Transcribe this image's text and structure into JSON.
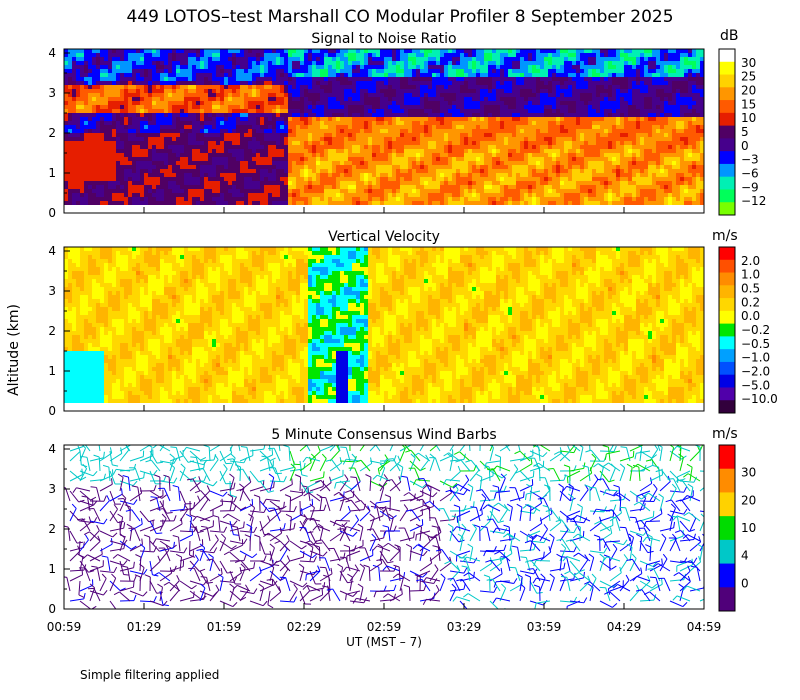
{
  "title": "449 LOTOS–test Marshall CO Modular Profiler  8 September 2025",
  "ylabel": "Altitude (km)",
  "xlabel": "UT  (MST – 7)",
  "footnote": "Simple filtering applied",
  "chart_data": [
    {
      "type": "heatmap",
      "title": "Signal to Noise Ratio",
      "units": "dB",
      "x_ticks": [
        "00:59",
        "01:29",
        "01:59",
        "02:29",
        "02:59",
        "03:29",
        "03:59",
        "04:29",
        "04:59"
      ],
      "y_ticks": [
        "0",
        "1",
        "2",
        "3",
        "4"
      ],
      "ylim": [
        0,
        4.1
      ],
      "xlim": [
        "00:59",
        "04:59"
      ],
      "colorbar": {
        "labels": [
          "30",
          "25",
          "20",
          "15",
          "10",
          "5",
          "0",
          "−3",
          "−6",
          "−9",
          "−12"
        ],
        "colors": [
          "#ffffff",
          "#ffff00",
          "#ffd200",
          "#ff9600",
          "#ff5a00",
          "#e61e00",
          "#500064",
          "#46008c",
          "#0000ff",
          "#0096ff",
          "#00f0b4",
          "#00ff5a",
          "#78ff00"
        ]
      }
    },
    {
      "type": "heatmap",
      "title": "Vertical Velocity",
      "units": "m/s",
      "x_ticks": [
        "00:59",
        "01:29",
        "01:59",
        "02:29",
        "02:59",
        "03:29",
        "03:59",
        "04:29",
        "04:59"
      ],
      "y_ticks": [
        "0",
        "1",
        "2",
        "3",
        "4"
      ],
      "ylim": [
        0,
        4.1
      ],
      "xlim": [
        "00:59",
        "04:59"
      ],
      "colorbar": {
        "labels": [
          "2.0",
          "1.0",
          "0.5",
          "0.2",
          "0.0",
          "−0.2",
          "−0.5",
          "−1.0",
          "−2.0",
          "−5.0",
          "−10.0"
        ],
        "colors": [
          "#ff0000",
          "#ff5000",
          "#ff8c00",
          "#ffb400",
          "#ffd700",
          "#ffff00",
          "#00e600",
          "#00ffff",
          "#00a0ff",
          "#0050ff",
          "#0000e6",
          "#5000aa",
          "#32003c"
        ]
      }
    },
    {
      "type": "scatter",
      "title": "5 Minute Consensus Wind Barbs",
      "units": "m/s",
      "x_ticks": [
        "00:59",
        "01:29",
        "01:59",
        "02:29",
        "02:59",
        "03:29",
        "03:59",
        "04:29",
        "04:59"
      ],
      "y_ticks": [
        "0",
        "1",
        "2",
        "3",
        "4"
      ],
      "ylim": [
        0,
        4.1
      ],
      "xlim": [
        "00:59",
        "04:59"
      ],
      "colorbar": {
        "labels": [
          "30",
          "20",
          "10",
          "4",
          "0"
        ],
        "colors": [
          "#ff0000",
          "#ff8c00",
          "#ffd200",
          "#00dc00",
          "#00c8c8",
          "#0000ff",
          "#50007a"
        ]
      }
    }
  ]
}
